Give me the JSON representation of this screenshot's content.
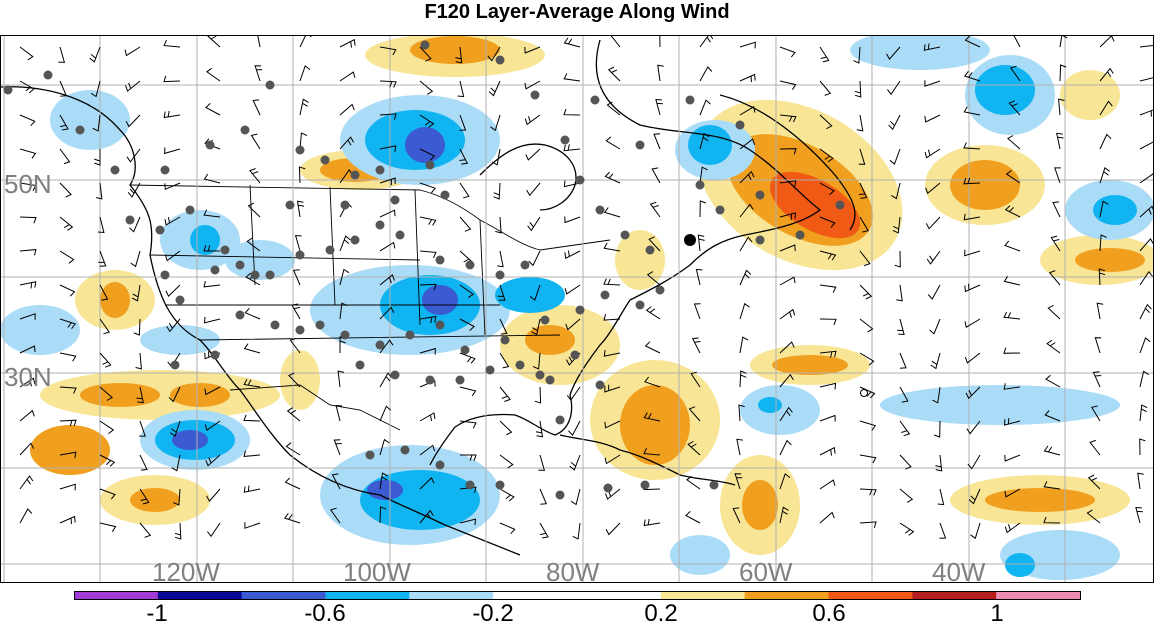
{
  "title": "F120 Layer-Average Along Wind",
  "lat_labels": [
    "50N",
    "30N"
  ],
  "lon_labels": [
    "120W",
    "100W",
    "80W",
    "60W",
    "40W"
  ],
  "colorbar": {
    "ticks": [
      "-1",
      "-0.6",
      "-0.2",
      "0.2",
      "0.6",
      "1"
    ],
    "colors": [
      "#a33cd6",
      "#0a0a96",
      "#3c5ad2",
      "#0fb4f0",
      "#aadcf8",
      "#ffffff",
      "#ffffff",
      "#f8e696",
      "#f0a01e",
      "#f05a14",
      "#b41e1e",
      "#f08cb4"
    ]
  },
  "legend_colors": {
    "strong_negative": "#3c5ad2",
    "negative": "#0fb4f0",
    "weak_negative": "#aadcf8",
    "weak_positive": "#f8e696",
    "positive": "#f0a01e",
    "strong_positive": "#f05a14"
  }
}
